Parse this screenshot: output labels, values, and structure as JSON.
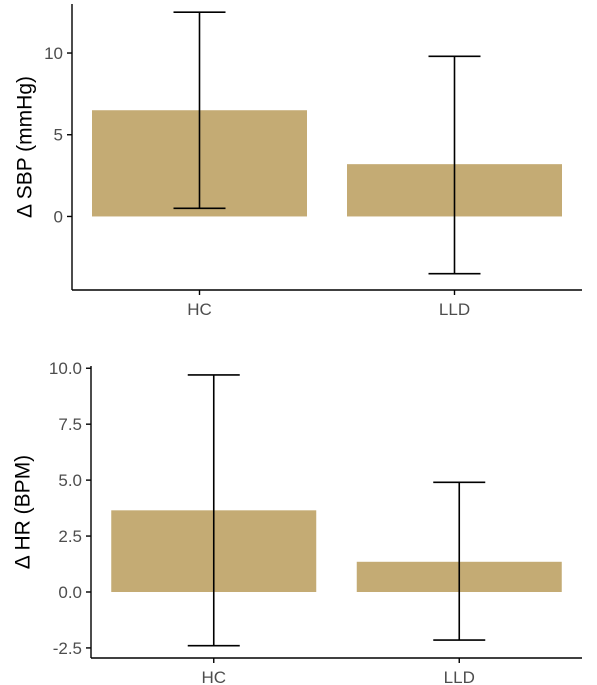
{
  "colors": {
    "bar": "#c4ab74",
    "axis": "#000000",
    "errorbar": "#000000",
    "tick_text": "#4d4d4d"
  },
  "chart_data": [
    {
      "type": "bar",
      "title": "",
      "xlabel": "",
      "ylabel": "Δ SBP (mmHg)",
      "categories": [
        "HC",
        "LLD"
      ],
      "values": [
        6.5,
        3.2
      ],
      "error_low": [
        0.5,
        -3.5
      ],
      "error_high": [
        12.5,
        9.8
      ],
      "ylim": [
        -4.5,
        13.0
      ],
      "yticks": [
        0,
        5,
        10
      ],
      "ytick_labels": [
        "0",
        "5",
        "10"
      ],
      "grid": false,
      "legend": "none"
    },
    {
      "type": "bar",
      "title": "",
      "xlabel": "",
      "ylabel": "Δ HR (BPM)",
      "categories": [
        "HC",
        "LLD"
      ],
      "values": [
        3.65,
        1.35
      ],
      "error_low": [
        -2.4,
        -2.15
      ],
      "error_high": [
        9.7,
        4.9
      ],
      "ylim": [
        -2.95,
        10.1
      ],
      "yticks": [
        -2.5,
        0,
        2.5,
        5,
        7.5,
        10
      ],
      "ytick_labels": [
        "-2.5",
        "0.0",
        "2.5",
        "5.0",
        "7.5",
        "10.0"
      ],
      "grid": false,
      "legend": "none"
    }
  ]
}
